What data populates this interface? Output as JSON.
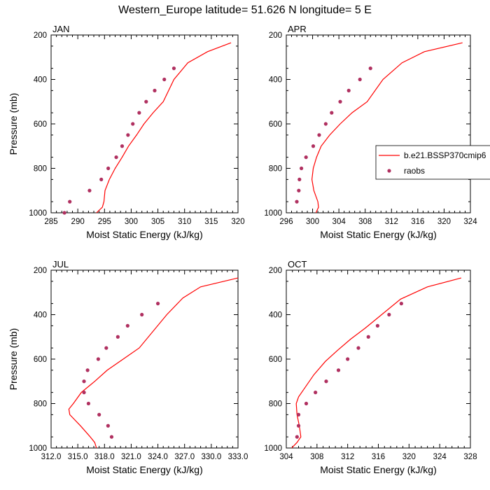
{
  "title": "Western_Europe  latitude= 51.626 N longitude= 5 E",
  "colors": {
    "model": "#ff0000",
    "raobs": "#b03060"
  },
  "legend": {
    "placement": "right of APR panel",
    "entries": [
      {
        "label": "b.e21.BSSP370cmip6",
        "kind": "line"
      },
      {
        "label": "raobs",
        "kind": "marker"
      }
    ]
  },
  "chart_data": [
    {
      "type": "line",
      "panel": "JAN",
      "xlabel": "Moist Static Energy (kJ/kg)",
      "ylabel": "Pressure (mb)",
      "xlim": [
        285,
        320
      ],
      "ylim": [
        1000,
        200
      ],
      "xticks": [
        285,
        290,
        295,
        300,
        305,
        310,
        315,
        320
      ],
      "xtick_labels": [
        "285",
        "290",
        "295",
        "300",
        "305",
        "310",
        "315",
        "320"
      ],
      "yticks": [
        200,
        400,
        600,
        800,
        1000
      ],
      "ytick_labels": [
        "200",
        "400",
        "600",
        "800",
        "1000"
      ],
      "series": [
        {
          "name": "b.e21.BSSP370cmip6",
          "style": "line",
          "x": [
            293.5,
            294.6,
            294.9,
            295.1,
            295.9,
            297.0,
            298.3,
            299.5,
            301.0,
            302.4,
            304.1,
            306.0,
            308.0,
            310.6,
            314.3,
            318.7
          ],
          "y": [
            1000,
            975,
            950,
            900,
            850,
            800,
            750,
            700,
            650,
            600,
            550,
            500,
            400,
            325,
            275,
            235
          ]
        },
        {
          "name": "raobs",
          "style": "marker",
          "x": [
            287.5,
            288.5,
            292.2,
            294.4,
            295.7,
            297.2,
            298.3,
            299.4,
            300.3,
            301.5,
            302.8,
            304.4,
            306.2,
            308.0
          ],
          "y": [
            1000,
            950,
            900,
            850,
            800,
            750,
            700,
            650,
            600,
            550,
            500,
            450,
            400,
            350
          ]
        }
      ]
    },
    {
      "type": "line",
      "panel": "APR",
      "xlabel": "Moist Static Energy (kJ/kg)",
      "ylabel": "",
      "xlim": [
        296,
        324
      ],
      "ylim": [
        1000,
        200
      ],
      "xticks": [
        296,
        300,
        304,
        308,
        312,
        316,
        320,
        324
      ],
      "xtick_labels": [
        "296",
        "300",
        "304",
        "308",
        "312",
        "316",
        "320",
        "324"
      ],
      "yticks": [
        200,
        400,
        600,
        800,
        1000
      ],
      "ytick_labels": [
        "200",
        "400",
        "600",
        "800",
        "1000"
      ],
      "series": [
        {
          "name": "b.e21.BSSP370cmip6",
          "style": "line",
          "x": [
            300.5,
            300.9,
            300.8,
            300.2,
            299.9,
            300.1,
            300.6,
            301.3,
            302.6,
            304.2,
            306.0,
            308.3,
            310.7,
            313.6,
            317.0,
            322.8
          ],
          "y": [
            1000,
            975,
            950,
            900,
            850,
            800,
            750,
            700,
            650,
            600,
            550,
            500,
            400,
            325,
            275,
            235
          ]
        },
        {
          "name": "raobs",
          "style": "marker",
          "x": [
            297.6,
            297.9,
            298.0,
            298.3,
            299.0,
            300.1,
            301.0,
            302.0,
            302.9,
            304.2,
            305.5,
            307.2,
            308.8
          ],
          "y": [
            950,
            900,
            850,
            800,
            750,
            700,
            650,
            600,
            550,
            500,
            450,
            400,
            350
          ]
        }
      ]
    },
    {
      "type": "line",
      "panel": "JUL",
      "xlabel": "Moist Static Energy (kJ/kg)",
      "ylabel": "Pressure (mb)",
      "xlim": [
        312,
        333
      ],
      "ylim": [
        1000,
        200
      ],
      "xticks": [
        312,
        315,
        318,
        321,
        324,
        327,
        330,
        333
      ],
      "xtick_labels": [
        "312.0",
        "315.0",
        "318.0",
        "321.0",
        "324.0",
        "327.0",
        "330.0",
        "333.0"
      ],
      "yticks": [
        200,
        400,
        600,
        800,
        1000
      ],
      "ytick_labels": [
        "200",
        "400",
        "600",
        "800",
        "1000"
      ],
      "series": [
        {
          "name": "b.e21.BSSP370cmip6",
          "style": "line",
          "x": [
            317.1,
            316.9,
            316.4,
            315.3,
            314.1,
            314.0,
            314.5,
            315.4,
            316.9,
            318.3,
            320.1,
            321.9,
            325.0,
            326.8,
            328.8,
            333.0
          ],
          "y": [
            1000,
            975,
            950,
            900,
            850,
            825,
            800,
            750,
            700,
            650,
            600,
            550,
            400,
            325,
            275,
            235
          ]
        },
        {
          "name": "raobs",
          "style": "marker",
          "x": [
            318.8,
            318.4,
            317.4,
            316.2,
            315.7,
            315.7,
            316.1,
            317.3,
            318.2,
            319.5,
            320.6,
            322.2,
            324.0
          ],
          "y": [
            950,
            900,
            850,
            800,
            750,
            700,
            650,
            600,
            550,
            500,
            450,
            400,
            350
          ]
        }
      ]
    },
    {
      "type": "line",
      "panel": "OCT",
      "xlabel": "Moist Static Energy (kJ/kg)",
      "ylabel": "",
      "xlim": [
        304,
        328
      ],
      "ylim": [
        1000,
        200
      ],
      "xticks": [
        304,
        308,
        312,
        316,
        320,
        324,
        328
      ],
      "xtick_labels": [
        "304",
        "308",
        "312",
        "316",
        "320",
        "324",
        "328"
      ],
      "yticks": [
        200,
        400,
        600,
        800,
        1000
      ],
      "ytick_labels": [
        "200",
        "400",
        "600",
        "800",
        "1000"
      ],
      "series": [
        {
          "name": "b.e21.BSSP370cmip6",
          "style": "line",
          "x": [
            304.7,
            305.4,
            305.9,
            305.7,
            305.4,
            305.3,
            305.6,
            306.4,
            307.6,
            309.1,
            310.7,
            312.4,
            314.3,
            318.9,
            322.4,
            326.8
          ],
          "y": [
            1000,
            975,
            950,
            900,
            850,
            800,
            770,
            730,
            670,
            610,
            560,
            510,
            460,
            330,
            275,
            235
          ]
        },
        {
          "name": "raobs",
          "style": "marker",
          "x": [
            305.4,
            305.6,
            305.6,
            306.6,
            307.8,
            309.2,
            310.8,
            312.0,
            313.4,
            314.7,
            315.9,
            317.4,
            319.0
          ],
          "y": [
            950,
            900,
            850,
            800,
            750,
            700,
            650,
            600,
            550,
            500,
            450,
            400,
            350
          ]
        }
      ]
    }
  ]
}
